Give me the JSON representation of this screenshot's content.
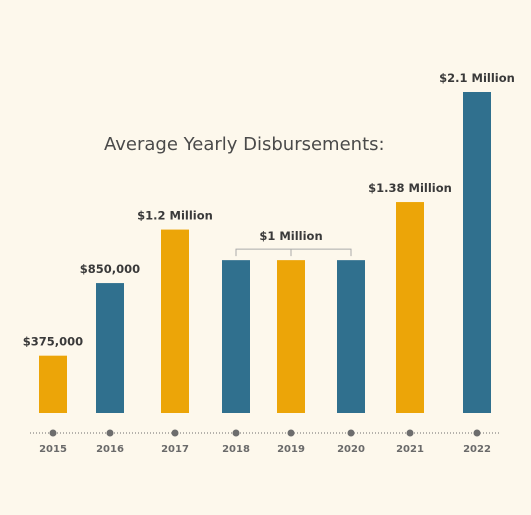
{
  "colors": {
    "background": "#fdf8ec",
    "gold": "#eca508",
    "blue": "#30708e",
    "axis": "#6d6d6d",
    "bracket": "#aaaaaa"
  },
  "chart_data": {
    "type": "bar",
    "title": "Average Yearly Disbursements:",
    "xlabel": "",
    "ylabel": "",
    "ylim": [
      0,
      2100000
    ],
    "grid": false,
    "categories": [
      "2015",
      "2016",
      "2017",
      "2018",
      "2019",
      "2020",
      "2021",
      "2022"
    ],
    "values": [
      375000,
      850000,
      1200000,
      1000000,
      1000000,
      1000000,
      1380000,
      2100000
    ],
    "bar_colors": [
      "gold",
      "blue",
      "gold",
      "blue",
      "gold",
      "blue",
      "gold",
      "blue"
    ],
    "data_labels": [
      "$375,000",
      "$850,000",
      "$1.2 Million",
      "",
      "",
      "",
      "$1.38 Million",
      "$2.1 Million"
    ],
    "group_annotation": {
      "label": "$1 Million",
      "categories": [
        "2018",
        "2019",
        "2020"
      ]
    }
  }
}
